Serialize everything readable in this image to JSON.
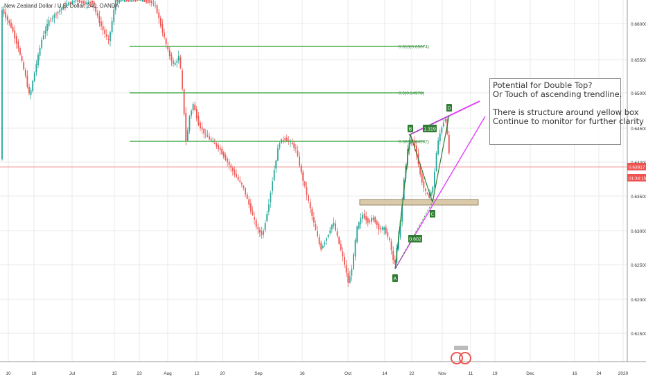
{
  "symbol": {
    "title": "New Zealand Dollar / U.S. Dollar, 240, OANDA"
  },
  "price_axis": {
    "ticks": [
      "0.66000",
      "0.65500",
      "0.65000",
      "0.64500",
      "0.64000",
      "0.63500",
      "0.63000",
      "0.62500",
      "0.62000",
      "0.61500"
    ],
    "current_price": "0.63917",
    "countdown": "01:34:15",
    "current_color": "#ef5350"
  },
  "time_axis": {
    "ticks": [
      "10",
      "18",
      "Jul",
      "15",
      "23",
      "Aug",
      "12",
      "20",
      "Sep",
      "16",
      "Oct",
      "14",
      "22",
      "Nov",
      "11",
      "19",
      "Dec",
      "16",
      "24",
      "2020"
    ]
  },
  "fibonacci": {
    "levels": [
      {
        "label": "0.618(0.65674)"
      },
      {
        "label": "0.5(0.64978)"
      },
      {
        "label": "0.382(0.64282)"
      }
    ],
    "color": "#4caf50"
  },
  "pattern": {
    "points": [
      "A",
      "B",
      "C",
      "D"
    ],
    "ratios": [
      "0.602",
      "1.319"
    ],
    "color": "#2e7d32"
  },
  "trendline_color": "#e040fb",
  "support_zone_color": "#d7c5a0",
  "annotation": {
    "lines": [
      "Potential for Double Top?",
      "Or Touch of ascending trendline.",
      "",
      "There is structure around yellow box",
      "Continue to monitor for further clarity"
    ]
  },
  "colors": {
    "up": "#26a69a",
    "down": "#ef5350",
    "grid": "#e8e8e8"
  }
}
